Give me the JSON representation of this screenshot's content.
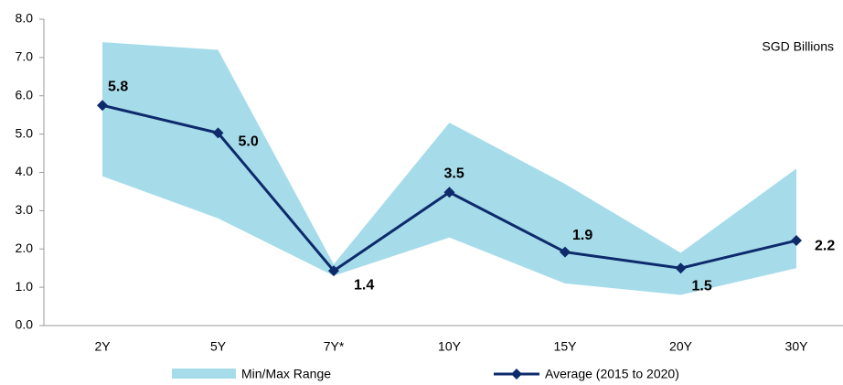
{
  "chart_data": {
    "type": "range-line",
    "annotation": "SGD Billions",
    "categories": [
      "2Y",
      "5Y",
      "7Y*",
      "10Y",
      "15Y",
      "20Y",
      "30Y"
    ],
    "series": [
      {
        "name": "Min/Max Range",
        "type": "range",
        "color": "#a6dcea",
        "values": [
          7.4,
          7.2,
          1.6,
          5.3,
          3.7,
          1.9,
          4.1
        ],
        "lower": [
          3.9,
          2.8,
          1.3,
          2.3,
          1.1,
          0.8,
          1.5
        ]
      },
      {
        "name": "Average (2015 to 2020)",
        "type": "line",
        "color": "#0d2a6b",
        "values": [
          5.75,
          5.03,
          1.43,
          3.48,
          1.92,
          1.5,
          2.22
        ],
        "value_labels": [
          "5.8",
          "5.0",
          "1.4",
          "3.5",
          "1.9",
          "1.5",
          "2.2"
        ]
      }
    ],
    "ylim": [
      0,
      8
    ],
    "yticks": [
      {
        "value": 0,
        "label": "0.0"
      },
      {
        "value": 1,
        "label": "1.0"
      },
      {
        "value": 2,
        "label": "2.0"
      },
      {
        "value": 3,
        "label": "3.0"
      },
      {
        "value": 4,
        "label": "4.0"
      },
      {
        "value": 5,
        "label": "5.0"
      },
      {
        "value": 6,
        "label": "6.0"
      },
      {
        "value": 7,
        "label": "7.0"
      },
      {
        "value": 8,
        "label": "8.0"
      }
    ],
    "legend": "bottom"
  }
}
